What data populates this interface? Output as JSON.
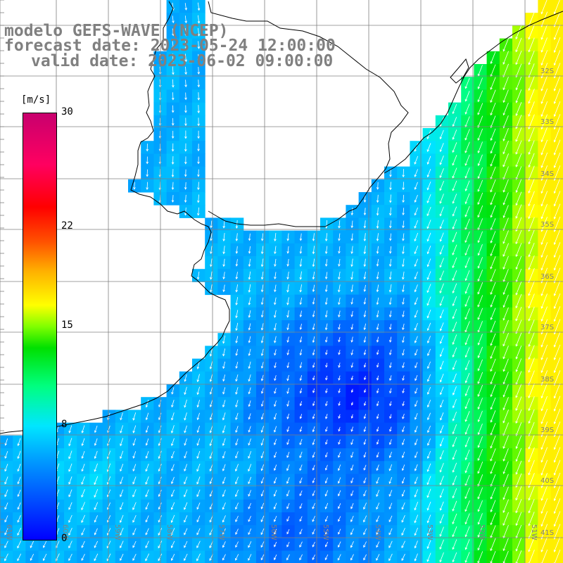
{
  "title": {
    "line1": "modelo GEFS-WAVE (NCEP)",
    "line2": "forecast date: 2023-05-24 12:00:00",
    "line3": "valid date: 2023-06-02 09:00:00"
  },
  "colorbar": {
    "unit": "[m/s]",
    "ticks": [
      {
        "value": 30,
        "label": "30"
      },
      {
        "value": 22,
        "label": "22"
      },
      {
        "value": 15,
        "label": "15"
      },
      {
        "value": 8,
        "label": "8"
      },
      {
        "value": 0,
        "label": "0"
      }
    ],
    "range": [
      0,
      30
    ]
  },
  "map": {
    "lat_labels": [
      "32S",
      "33S",
      "34S",
      "35S",
      "36S",
      "37S",
      "38S",
      "39S",
      "40S",
      "41S"
    ],
    "lon_labels": [
      "61W",
      "60W",
      "59W",
      "58W",
      "57W",
      "56W",
      "55W",
      "54W",
      "53W",
      "52W",
      "51W"
    ],
    "colors": {
      "land": "#ffffff",
      "grid": "#808080",
      "coast": "#000000",
      "arrow": "#ffffff"
    }
  }
}
